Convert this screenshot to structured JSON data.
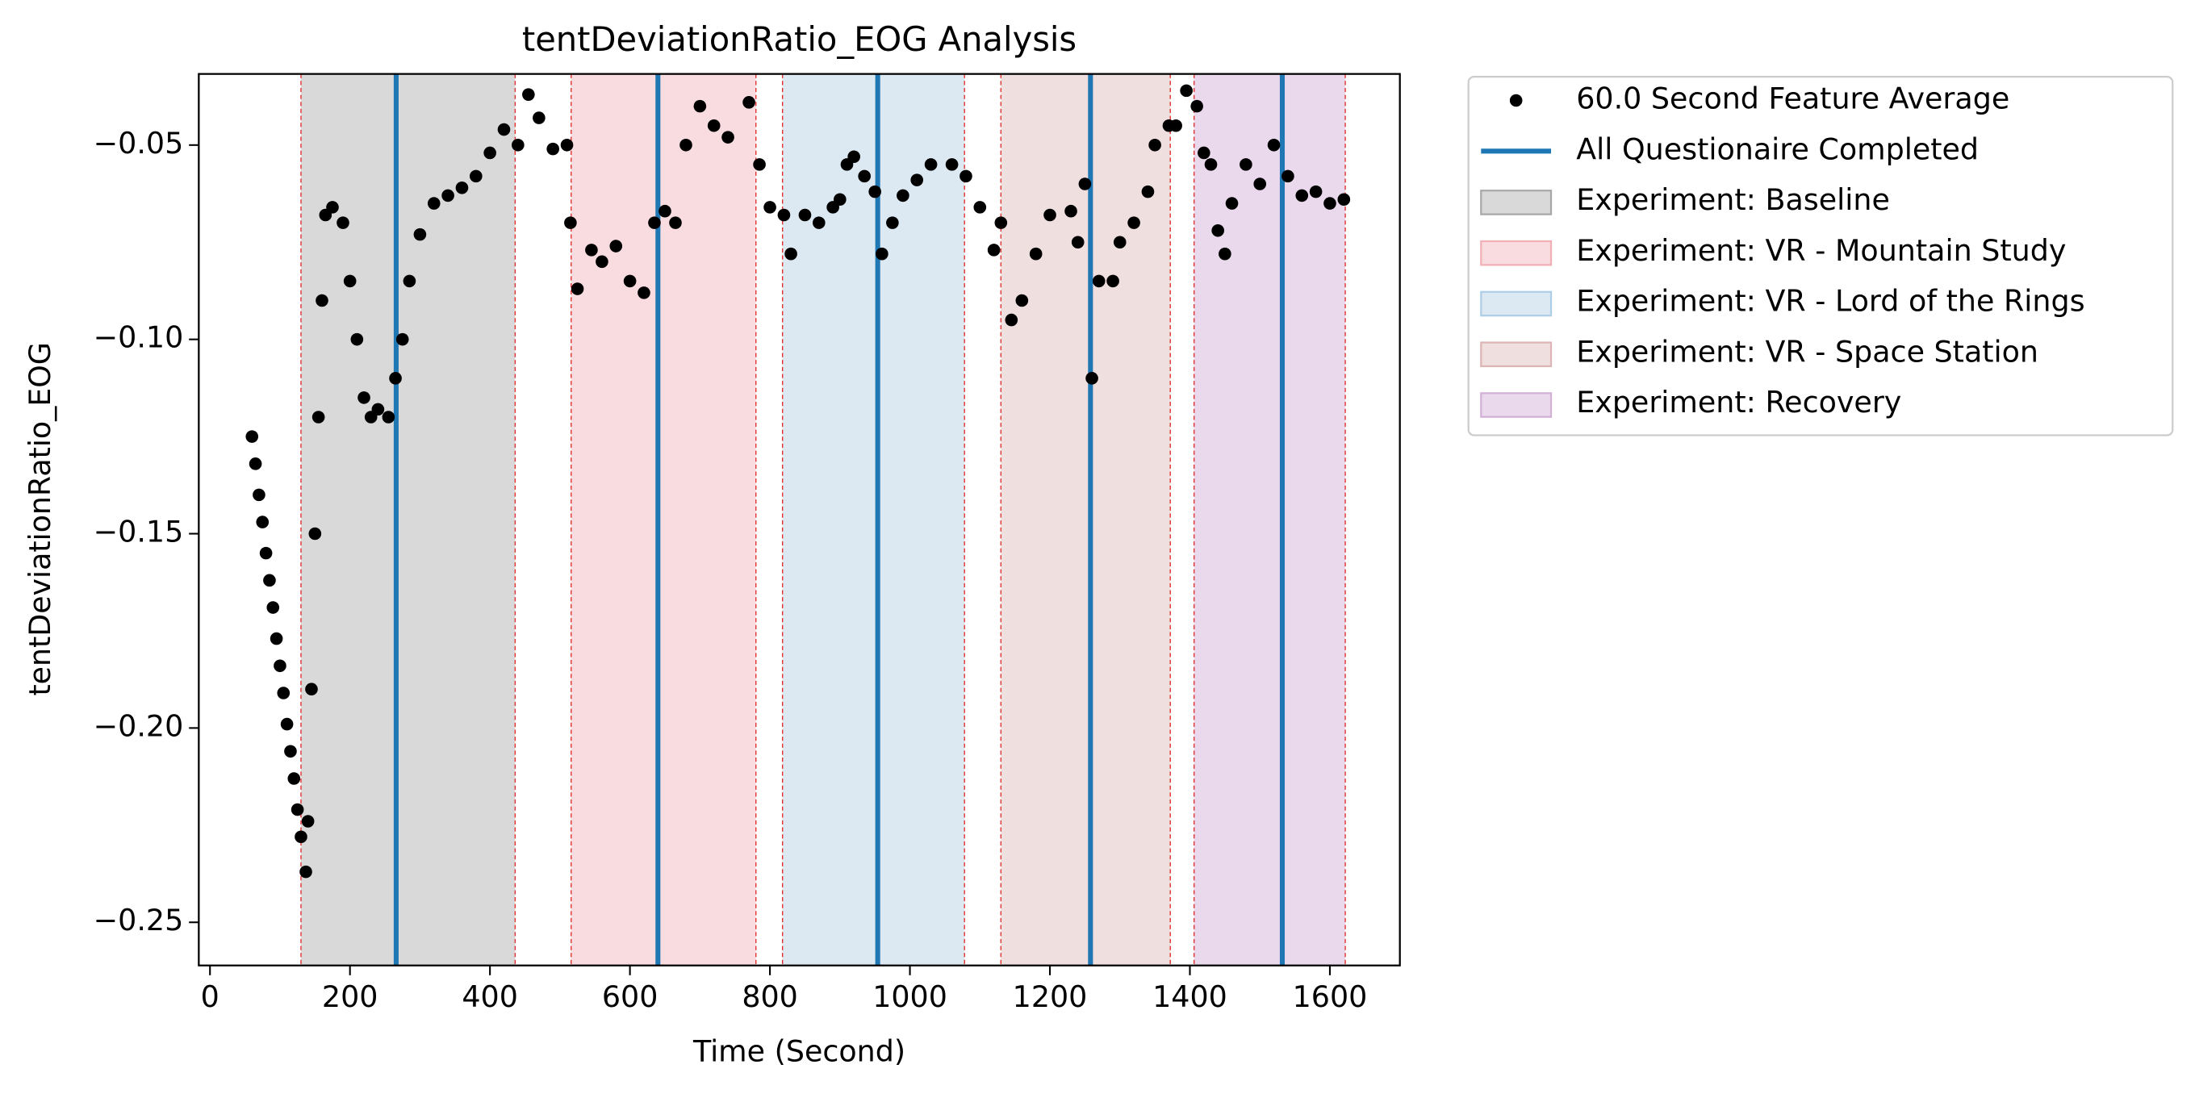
{
  "chart_data": {
    "type": "scatter",
    "title": "tentDeviationRatio_EOG Analysis",
    "xlabel": "Time (Second)",
    "ylabel": "tentDeviationRatio_EOG",
    "xlim": [
      -16,
      1700
    ],
    "ylim": [
      -0.2611,
      -0.0317
    ],
    "xticks": [
      0,
      200,
      400,
      600,
      800,
      1000,
      1200,
      1400,
      1600
    ],
    "yticks": [
      {
        "value": -0.25,
        "label": "−0.25"
      },
      {
        "value": -0.2,
        "label": "−0.20"
      },
      {
        "value": -0.15,
        "label": "−0.15"
      },
      {
        "value": -0.1,
        "label": "−0.10"
      },
      {
        "value": -0.05,
        "label": "−0.05"
      }
    ],
    "series": [
      {
        "name": "60.0 Second Feature Average",
        "color": "#000000",
        "x": [
          60,
          65,
          70,
          75,
          80,
          85,
          90,
          95,
          100,
          105,
          110,
          115,
          120,
          125,
          130,
          137,
          140,
          145,
          150,
          155,
          160,
          165,
          175,
          190,
          200,
          210,
          220,
          230,
          240,
          255,
          265,
          275,
          285,
          300,
          320,
          340,
          360,
          380,
          400,
          420,
          440,
          455,
          470,
          490,
          510,
          515,
          525,
          545,
          560,
          580,
          600,
          620,
          635,
          650,
          665,
          680,
          700,
          720,
          740,
          770,
          785,
          800,
          820,
          830,
          850,
          870,
          890,
          900,
          910,
          920,
          935,
          950,
          960,
          975,
          990,
          1010,
          1030,
          1060,
          1080,
          1100,
          1120,
          1130,
          1145,
          1160,
          1180,
          1200,
          1230,
          1240,
          1250,
          1260,
          1270,
          1290,
          1300,
          1320,
          1340,
          1350,
          1370,
          1380,
          1395,
          1410,
          1420,
          1430,
          1440,
          1450,
          1460,
          1480,
          1500,
          1520,
          1540,
          1560,
          1580,
          1600,
          1620
        ],
        "values": [
          -0.125,
          -0.132,
          -0.14,
          -0.147,
          -0.155,
          -0.162,
          -0.169,
          -0.177,
          -0.184,
          -0.191,
          -0.199,
          -0.206,
          -0.213,
          -0.221,
          -0.228,
          -0.237,
          -0.224,
          -0.19,
          -0.15,
          -0.12,
          -0.09,
          -0.068,
          -0.066,
          -0.07,
          -0.085,
          -0.1,
          -0.115,
          -0.12,
          -0.118,
          -0.12,
          -0.11,
          -0.1,
          -0.085,
          -0.073,
          -0.065,
          -0.063,
          -0.061,
          -0.058,
          -0.052,
          -0.046,
          -0.05,
          -0.037,
          -0.043,
          -0.051,
          -0.05,
          -0.07,
          -0.087,
          -0.077,
          -0.08,
          -0.076,
          -0.085,
          -0.088,
          -0.07,
          -0.067,
          -0.07,
          -0.05,
          -0.04,
          -0.045,
          -0.048,
          -0.039,
          -0.055,
          -0.066,
          -0.068,
          -0.078,
          -0.068,
          -0.07,
          -0.066,
          -0.064,
          -0.055,
          -0.053,
          -0.058,
          -0.062,
          -0.078,
          -0.07,
          -0.063,
          -0.059,
          -0.055,
          -0.055,
          -0.058,
          -0.066,
          -0.077,
          -0.07,
          -0.095,
          -0.09,
          -0.078,
          -0.068,
          -0.067,
          -0.075,
          -0.06,
          -0.11,
          -0.085,
          -0.085,
          -0.075,
          -0.07,
          -0.062,
          -0.05,
          -0.045,
          -0.045,
          -0.036,
          -0.04,
          -0.052,
          -0.055,
          -0.072,
          -0.078,
          -0.065,
          -0.055,
          -0.06,
          -0.05,
          -0.058,
          -0.063,
          -0.062,
          -0.065,
          -0.064
        ]
      }
    ],
    "vlines": {
      "name": "All Questionaire Completed",
      "color": "#1f77b4",
      "x": [
        266,
        640,
        954,
        1258,
        1532
      ]
    },
    "regions": [
      {
        "name": "Experiment: Baseline",
        "start": 130,
        "end": 436,
        "color": "#d9d9d9",
        "edge": "#a8a8a8"
      },
      {
        "name": "Experiment: VR - Mountain Study",
        "start": 516,
        "end": 780,
        "color": "#f9dcdf",
        "edge": "#f0b0b6"
      },
      {
        "name": "Experiment: VR - Lord of the Rings",
        "start": 818,
        "end": 1078,
        "color": "#dce9f3",
        "edge": "#aecde6"
      },
      {
        "name": "Experiment: VR - Space Station",
        "start": 1130,
        "end": 1372,
        "color": "#f0dfdf",
        "edge": "#ddb5b5"
      },
      {
        "name": "Experiment: Recovery",
        "start": 1406,
        "end": 1622,
        "color": "#ead9ec",
        "edge": "#d2b1d7"
      }
    ]
  }
}
